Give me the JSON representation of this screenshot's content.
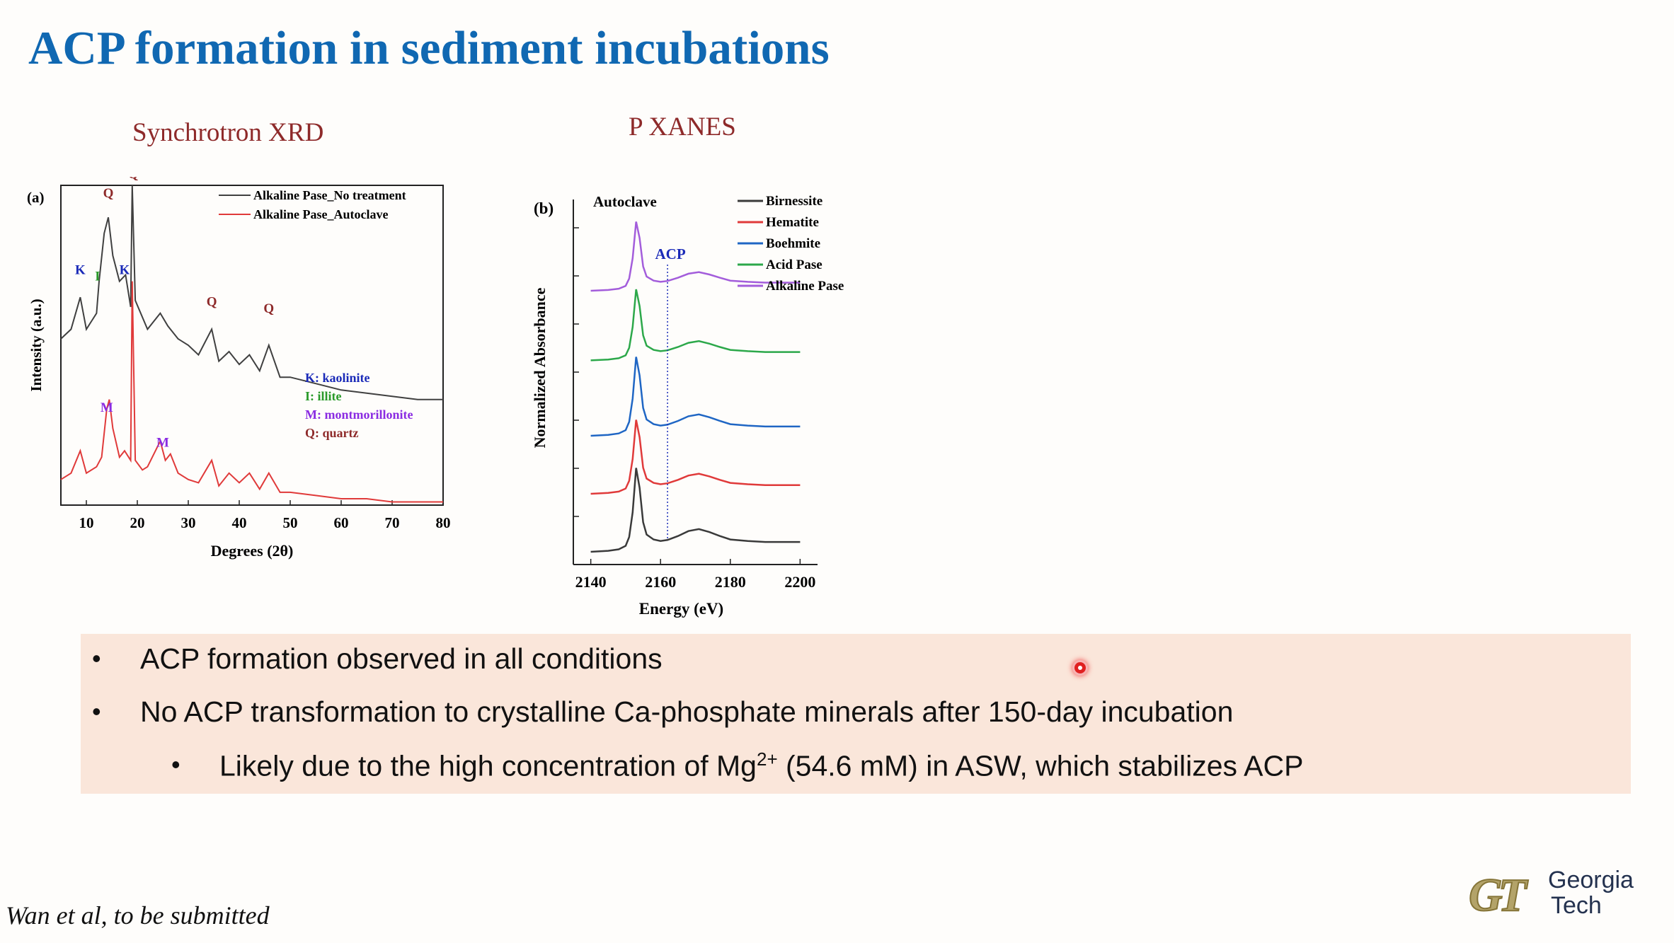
{
  "slide": {
    "title": "ACP formation in sediment incubations",
    "citation": "Wan et al, to be submitted"
  },
  "colors": {
    "title": "#1068b2",
    "subheading": "#8e2a2a",
    "bullet_background": "#fae6da",
    "laser_pointer": "#e02020",
    "logo_gold": "#b3a369",
    "logo_navy": "#24324f"
  },
  "panels": {
    "xrd_heading": "Synchrotron XRD",
    "xanes_heading": "P XANES"
  },
  "bullets": {
    "item1": "ACP formation observed in all conditions",
    "item2": "No ACP transformation to crystalline Ca-phosphate minerals after 150-day incubation",
    "item3_prefix": "Likely due to the high concentration of Mg",
    "item3_superscript": "2+",
    "item3_suffix": " (54.6 mM) in ASW, which stabilizes ACP",
    "bullet_glyph": "•"
  },
  "logo": {
    "mark": "GT",
    "word1": "Georgia",
    "word2": "Tech"
  },
  "chart_data": [
    {
      "type": "line",
      "panel_label": "(a)",
      "xlabel": "Degrees (2θ)",
      "ylabel": "Intensity (a.u.)",
      "xlim": [
        5,
        80
      ],
      "xticks": [
        10,
        20,
        30,
        40,
        50,
        60,
        70,
        80
      ],
      "legend_position": "top-right",
      "series": [
        {
          "name": "Alkaline Pase_No treatment",
          "color": "#404040",
          "x": [
            5,
            7,
            8.8,
            10,
            12,
            12.5,
            13.5,
            14.3,
            15.2,
            16.5,
            17.7,
            18.7,
            19,
            19.6,
            22,
            24.5,
            26,
            28,
            30,
            32,
            34.6,
            36,
            38,
            40,
            42,
            44,
            45.8,
            48,
            50,
            55,
            60,
            65,
            70,
            75,
            80
          ],
          "y": [
            0.52,
            0.55,
            0.65,
            0.55,
            0.6,
            0.7,
            0.85,
            0.9,
            0.78,
            0.7,
            0.72,
            0.62,
            1.0,
            0.64,
            0.55,
            0.6,
            0.56,
            0.52,
            0.5,
            0.47,
            0.55,
            0.45,
            0.48,
            0.44,
            0.47,
            0.42,
            0.5,
            0.4,
            0.4,
            0.38,
            0.36,
            0.35,
            0.34,
            0.33,
            0.33
          ]
        },
        {
          "name": "Alkaline Pase_Autoclave",
          "color": "#e03a3a",
          "x": [
            5,
            7,
            8.8,
            10,
            12,
            13,
            14,
            14.5,
            15.2,
            16.5,
            17.5,
            18.7,
            19,
            19.6,
            21,
            22,
            24.5,
            25.5,
            26.5,
            28,
            30,
            32,
            34.6,
            36,
            38,
            40,
            42,
            44,
            45.8,
            48,
            50,
            55,
            60,
            65,
            70,
            75,
            80
          ],
          "y": [
            0.08,
            0.1,
            0.17,
            0.1,
            0.12,
            0.15,
            0.3,
            0.33,
            0.24,
            0.15,
            0.17,
            0.14,
            0.7,
            0.14,
            0.11,
            0.12,
            0.2,
            0.14,
            0.16,
            0.1,
            0.08,
            0.07,
            0.14,
            0.06,
            0.1,
            0.07,
            0.1,
            0.05,
            0.1,
            0.04,
            0.04,
            0.03,
            0.02,
            0.02,
            0.01,
            0.01,
            0.01
          ]
        }
      ],
      "peak_labels": [
        {
          "text": "K",
          "x": 8.8,
          "color": "#1a2ab8"
        },
        {
          "text": "I",
          "x": 12.2,
          "color": "#2a9a2a"
        },
        {
          "text": "Q",
          "x": 14.3,
          "color": "#8e2a2a"
        },
        {
          "text": "K",
          "x": 17.5,
          "color": "#1a2ab8"
        },
        {
          "text": "Q",
          "x": 19.2,
          "color": "#8e2a2a"
        },
        {
          "text": "Q",
          "x": 34.6,
          "color": "#8e2a2a"
        },
        {
          "text": "Q",
          "x": 45.8,
          "color": "#8e2a2a"
        },
        {
          "text": "M",
          "x": 14.0,
          "color": "#8a2be2"
        },
        {
          "text": "M",
          "x": 25.0,
          "color": "#8a2be2"
        }
      ],
      "key": [
        {
          "text": "K: kaolinite",
          "color": "#1a2ab8"
        },
        {
          "text": "I: illite",
          "color": "#2a9a2a"
        },
        {
          "text": "M: montmorillonite",
          "color": "#8a2be2"
        },
        {
          "text": "Q: quartz",
          "color": "#8e2a2a"
        }
      ]
    },
    {
      "type": "line",
      "panel_label": "(b)",
      "annotation": "Autoclave",
      "acp_label": "ACP",
      "acp_energy": 2162,
      "xlabel": "Energy (eV)",
      "ylabel": "Normalized Absorbance",
      "xlim": [
        2135,
        2205
      ],
      "xticks": [
        2140,
        2160,
        2180,
        2200
      ],
      "legend_position": "top-right",
      "series": [
        {
          "name": "Birnessite",
          "color": "#3a3a3a",
          "offset": 0.0
        },
        {
          "name": "Hematite",
          "color": "#e03a3a",
          "offset": 1.0
        },
        {
          "name": "Boehmite",
          "color": "#1f66c4",
          "offset": 2.0
        },
        {
          "name": "Acid Pase",
          "color": "#2ca84a",
          "offset": 3.3
        },
        {
          "name": "Alkaline Pase",
          "color": "#a35ddb",
          "offset": 4.5
        }
      ],
      "energies": [
        2140,
        2145,
        2148,
        2150,
        2151,
        2152,
        2153,
        2154,
        2155,
        2156,
        2158,
        2160,
        2162,
        2165,
        2168,
        2171,
        2174,
        2177,
        2180,
        2185,
        2190,
        2195,
        2200
      ],
      "shape": [
        0.0,
        0.02,
        0.05,
        0.12,
        0.3,
        0.8,
        1.7,
        1.3,
        0.6,
        0.35,
        0.25,
        0.22,
        0.24,
        0.32,
        0.42,
        0.46,
        0.4,
        0.32,
        0.25,
        0.22,
        0.2,
        0.2,
        0.2
      ]
    }
  ]
}
